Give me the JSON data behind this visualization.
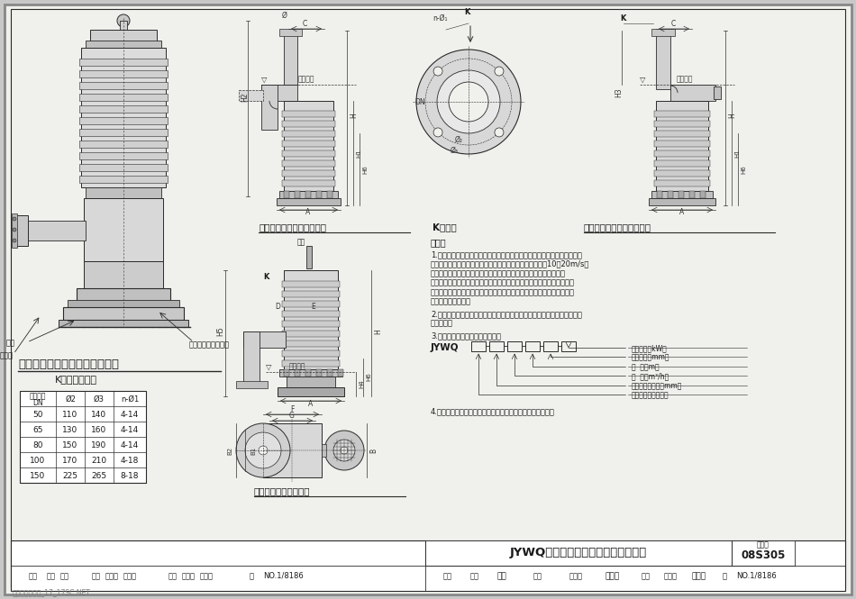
{
  "bg_color": "#c8c8c8",
  "paper_color": "#f0f0ec",
  "title": "JYWQ系列自动搅匀潜水排污泵外形图",
  "drawing_number": "08S305",
  "page_label": "图集号",
  "watermark": "典尚建筑景材网_17_17SC.NET",
  "main_title_left": "自动搅匀潜水排污泵构造示意图",
  "table_title": "K向法兰尺寸表",
  "table_headers": [
    "出口直径\nDN",
    "Ø2",
    "Ø3",
    "n-Ø1"
  ],
  "table_data": [
    [
      "50",
      "110",
      "140",
      "4-14"
    ],
    [
      "65",
      "130",
      "160",
      "4-14"
    ],
    [
      "80",
      "150",
      "190",
      "4-14"
    ],
    [
      "100",
      "170",
      "210",
      "4-18"
    ],
    [
      "150",
      "225",
      "265",
      "8-18"
    ]
  ],
  "diagram_title1": "软管连接移动式安装外形图",
  "diagram_title2": "K向放大",
  "diagram_title3": "硬管连接固定式安装外形图",
  "diagram_title4": "固定自耦式安装外形图",
  "notes_title": "说明：",
  "note1_lines": [
    "1.自动搅匀潜水排污泵系在普通型潜水排污泵的基础上设计有一个特殊的引",
    "水装置，利用泵腔中的压力水流，随着电机的高速旋转，以10～20m/s的",
    "波流速度冲洗污水池（集水坑）底部，将沉淀物搅匀后随水流排出，",
    "防止污水池（集水坑）沉淀物堆积固化。适用于厨房含油废水及含有粪便",
    "的生活污水，含混沙量较多的地下汽车库废水等沉淀物较多，停留时间较",
    "长的污、废水抽升。"
  ],
  "note2_lines": [
    "2.该泵泵体材质有铸铁和不锈钢两种，若用于抽升腐蚀性液体时，应选用不",
    "锈钢材质。"
  ],
  "note3": "3.自动搅匀潜水排污泵型号含意：",
  "note4": "4.本页根据上海熊猫机械（集团）有限公司提供的资料编制。",
  "model_label": "JYWQ",
  "model_desc": [
    "电机功率（kW）",
    "搅匀直径（mm）",
    "扬  程（m）",
    "流  量（m³/h）",
    "排出口公称直径（mm）",
    "自动搅匀潜水排污泵"
  ],
  "tb_row1": [
    "审核",
    "李文",
    "李之",
    "校对",
    "史长作",
    "史红光",
    "设计",
    "路志锋",
    "路志锋",
    "页"
  ],
  "tb_no": "NO.1/8186",
  "line_color": "#2a2a2a",
  "text_color": "#1a1a1a",
  "dim_color": "#333333"
}
